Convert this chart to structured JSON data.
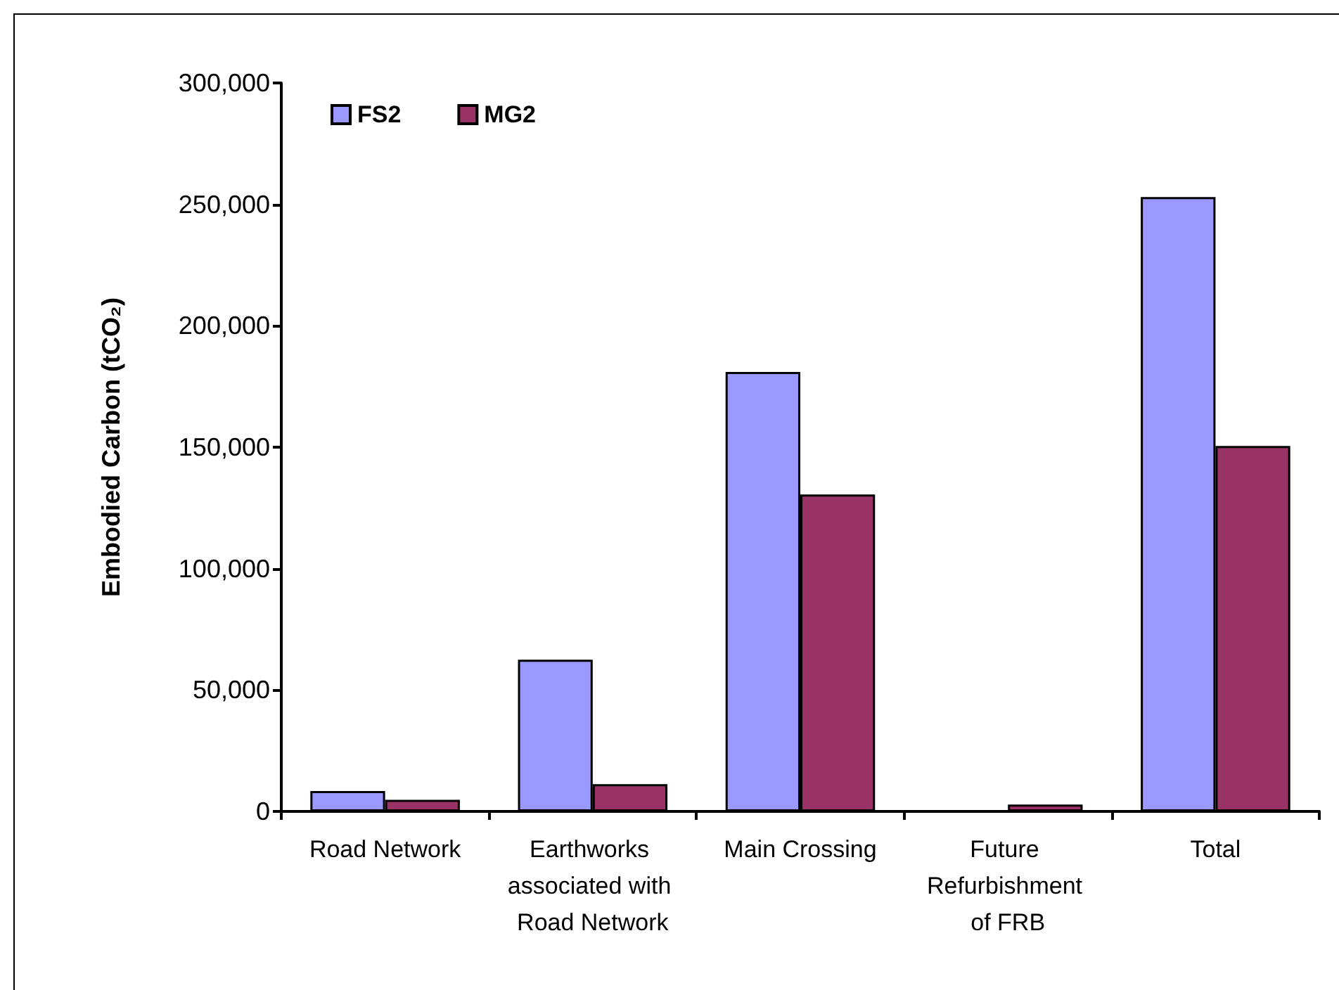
{
  "chart_data": {
    "type": "bar",
    "ylabel": "Embodied Carbon (tCO₂)",
    "categories": [
      "Road Network",
      "Earthworks associated with Road Network",
      "Main Crossing",
      "Future Refurbishment of FRB",
      "Total"
    ],
    "series": [
      {
        "name": "FS2",
        "color": "#9999ff",
        "values": [
          8400,
          62500,
          181000,
          null,
          253000
        ]
      },
      {
        "name": "MG2",
        "color": "#993366",
        "values": [
          4800,
          11200,
          130500,
          2800,
          150500
        ]
      }
    ],
    "ylim": [
      0,
      300000
    ],
    "yticks": [
      0,
      {
        "value": 50000,
        "label": "50,000"
      },
      {
        "value": 100000,
        "label": "100,000"
      },
      {
        "value": 150000,
        "label": "150,000"
      },
      {
        "value": 200000,
        "label": "200,000"
      },
      {
        "value": 250000,
        "label": "250,000"
      },
      {
        "value": 300000,
        "label": "300,000"
      }
    ],
    "grid": false,
    "legend": "top left"
  }
}
